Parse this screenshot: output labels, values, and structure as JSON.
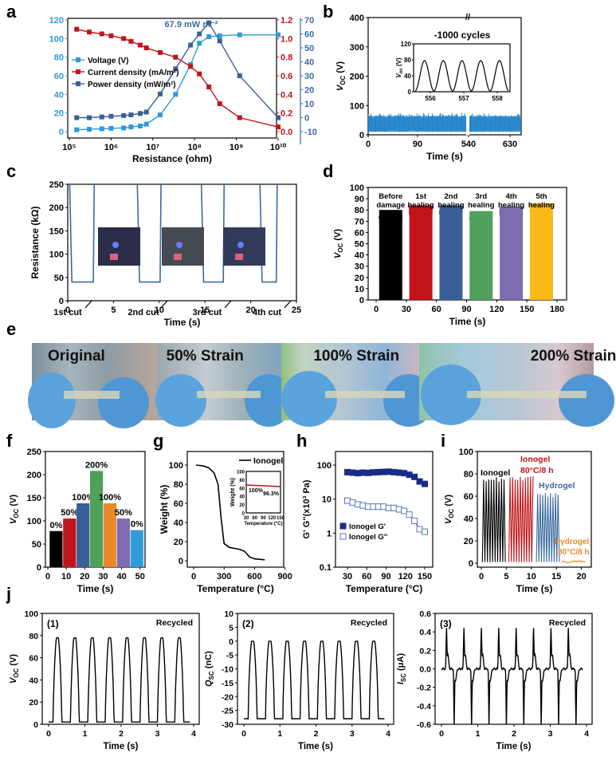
{
  "panels": {
    "a": "a",
    "b": "b",
    "c": "c",
    "d": "d",
    "e": "e",
    "f": "f",
    "g": "g",
    "h": "h",
    "i": "i",
    "j": "j"
  },
  "colors": {
    "blue": "#2f6fb5",
    "light_blue": "#2f9bd8",
    "red": "#c0141b",
    "navy": "#3a5f96",
    "black": "#000000",
    "green": "#4fa05a",
    "purple": "#7e6bb0",
    "yellow": "#f8b919",
    "orange": "#e88a2a",
    "steel": "#3b6aa0"
  },
  "chart_data": [
    {
      "id": "a",
      "type": "line",
      "annotation": "67.9 mW m⁻²",
      "xlabel": "Resistance (ohm)",
      "x_log": true,
      "x_ticks": [
        "10⁵",
        "10⁶",
        "10⁷",
        "10⁸",
        "10⁹",
        "10¹⁰"
      ],
      "y_left_ticks": [
        "0",
        "20",
        "40",
        "60",
        "80",
        "100",
        "120"
      ],
      "y_mid_ticks": [
        "0.0",
        "0.2",
        "0.4",
        "0.6",
        "0.8",
        "1.0",
        "1.2"
      ],
      "y_right_ticks": [
        "-10",
        "0",
        "10",
        "20",
        "30",
        "40",
        "50",
        "60",
        "70"
      ],
      "x": [
        150000,
        300000,
        600000,
        1000000,
        2000000,
        3000000,
        5000000,
        7000000,
        15000000,
        35000000,
        80000000,
        130000000,
        220000000,
        400000000,
        1200000000,
        10000000000
      ],
      "series": [
        {
          "name": "Voltage (V)",
          "axis": "left",
          "values": [
            2,
            2.5,
            3,
            3.5,
            4,
            5,
            6,
            8,
            18,
            40,
            72,
            95,
            102,
            103,
            104,
            104
          ]
        },
        {
          "name": "Current density (mA/m²)",
          "axis": "mid",
          "values": [
            1.1,
            1.07,
            1.05,
            1.03,
            1.0,
            0.97,
            0.93,
            0.9,
            0.85,
            0.8,
            0.7,
            0.62,
            0.48,
            0.3,
            0.15,
            0.05
          ]
        },
        {
          "name": "Power density (mW/m²)",
          "axis": "right",
          "values": [
            0,
            0,
            0.5,
            1,
            1.5,
            2,
            3,
            4,
            17,
            35,
            52,
            60,
            67.9,
            55,
            30,
            0
          ]
        }
      ]
    },
    {
      "id": "b",
      "type": "line",
      "ylabel": "V",
      "ylabel_sub": "OC",
      "ylabel_unit": " (V)",
      "xlabel": "Time (s)",
      "x_ticks": [
        "0",
        "90",
        "540",
        "630"
      ],
      "y_ticks": [
        "0",
        "100",
        "200",
        "300",
        "400"
      ],
      "inset": {
        "title": "-1000 cycles",
        "x_ticks": [
          "556",
          "557",
          "558"
        ],
        "y_ticks": [
          "0",
          "40",
          "80",
          "120"
        ],
        "ylabel": "V",
        "ylabel_sub": "oc",
        "ylabel_unit": " (V)"
      },
      "signal_range": [
        10,
        75
      ]
    },
    {
      "id": "c",
      "type": "line",
      "ylabel": "Resistance (kΩ)",
      "xlabel": "Time (s)",
      "x_ticks": [
        "0",
        "5",
        "10",
        "15",
        "20",
        "25"
      ],
      "y_ticks": [
        "0",
        "50",
        "100",
        "150",
        "200",
        "250"
      ],
      "cut_labels": [
        "1st cut",
        "2nd cut",
        "3rd cut",
        "4th cut"
      ],
      "baseline": 40
    },
    {
      "id": "d",
      "type": "bar",
      "ylabel": "V",
      "ylabel_sub": "OC",
      "ylabel_unit": " (V)",
      "xlabel": "Time (s)",
      "x_ticks": [
        "0",
        "30",
        "60",
        "90",
        "120",
        "150",
        "180"
      ],
      "y_ticks": [
        "0",
        "10",
        "20",
        "30",
        "40",
        "50",
        "60",
        "70",
        "80",
        "90",
        "100"
      ],
      "categories": [
        "Before damage",
        "1st healing",
        "2nd healing",
        "3rd healing",
        "4th healing",
        "5th healing"
      ],
      "values": [
        80,
        84,
        84,
        79,
        83,
        86
      ]
    },
    {
      "id": "f",
      "type": "bar",
      "ylabel": "V",
      "ylabel_sub": "OC",
      "ylabel_unit": " (V)",
      "xlabel": "Time (s)",
      "x_ticks": [
        "0",
        "10",
        "20",
        "30",
        "40",
        "50"
      ],
      "y_ticks": [
        "0",
        "50",
        "100",
        "150",
        "200",
        "250"
      ],
      "categories": [
        "0%",
        "50%",
        "100%",
        "200%",
        "100%",
        "50%",
        "0%"
      ],
      "values": [
        78,
        105,
        138,
        208,
        138,
        105,
        80
      ]
    },
    {
      "id": "g",
      "type": "line",
      "ylabel": "Weight (%)",
      "xlabel": "Temperature (°C)",
      "legend": "Ionogel",
      "x_ticks": [
        "0",
        "300",
        "600",
        "900"
      ],
      "y_ticks": [
        "0",
        "20",
        "40",
        "60",
        "80",
        "100"
      ],
      "x": [
        25,
        100,
        150,
        200,
        240,
        270,
        300,
        350,
        400,
        450,
        500,
        550,
        600,
        700
      ],
      "values": [
        100,
        99,
        97,
        92,
        80,
        45,
        18,
        14,
        13,
        12,
        10,
        4,
        2,
        1
      ],
      "inset": {
        "ylabel": "Weight (%)",
        "xlabel": "Temperature (°C)",
        "x_ticks": [
          "30",
          "60",
          "90",
          "120",
          "150"
        ],
        "y_ticks": [
          "0",
          "20",
          "40",
          "60",
          "80",
          "100"
        ],
        "label_start": "100%",
        "label_end": "96.3%"
      }
    },
    {
      "id": "h",
      "type": "scatter",
      "ylabel": "G' G''(x10³ Pa)",
      "xlabel": "Temperature (°C)",
      "y_log": true,
      "x_ticks": [
        "30",
        "60",
        "90",
        "120",
        "150"
      ],
      "y_ticks": [
        "0.1",
        "1",
        "10",
        "100"
      ],
      "x": [
        30,
        38,
        46,
        54,
        62,
        70,
        78,
        86,
        94,
        102,
        110,
        118,
        126,
        134,
        142,
        150
      ],
      "series": [
        {
          "name": "Ionogel G'",
          "values": [
            62,
            60,
            58,
            60,
            59,
            61,
            62,
            63,
            64,
            62,
            60,
            58,
            52,
            45,
            33,
            28
          ]
        },
        {
          "name": "Ionogel G''",
          "values": [
            9,
            8,
            7,
            6.5,
            6,
            6,
            6,
            6,
            5.5,
            5.5,
            5,
            4.5,
            3.5,
            2.3,
            1.3,
            1.1
          ]
        }
      ]
    },
    {
      "id": "i",
      "type": "bar",
      "ylabel": "V",
      "ylabel_sub": "OC",
      "ylabel_unit": " (V)",
      "xlabel": "Time (s)",
      "x_ticks": [
        "0",
        "5",
        "10",
        "15",
        "20"
      ],
      "y_ticks": [
        "0",
        "20",
        "40",
        "60",
        "80",
        "100"
      ],
      "categories": [
        "Ionogel",
        "Ionogel 80°C/8 h",
        "Hydrogel",
        "Hydrogel 80°C/8 h"
      ],
      "values": [
        77,
        78,
        63,
        3
      ]
    },
    {
      "id": "j1",
      "type": "line",
      "tag": "(1)",
      "note": "Recycled",
      "ylabel": "V",
      "ylabel_sub": "OC",
      "ylabel_unit": " (V)",
      "xlabel": "Time (s)",
      "x_ticks": [
        "0",
        "1",
        "2",
        "3",
        "4"
      ],
      "y_ticks": [
        "0",
        "20",
        "40",
        "60",
        "80",
        "100"
      ],
      "peak": 78,
      "base": 2
    },
    {
      "id": "j2",
      "type": "line",
      "tag": "(2)",
      "note": "Recycled",
      "ylabel": "Q",
      "ylabel_sub": "SC",
      "ylabel_unit": " (nC)",
      "xlabel": "Time (s)",
      "x_ticks": [
        "0",
        "1",
        "2",
        "3",
        "4"
      ],
      "y_ticks": [
        "-30",
        "-25",
        "-20",
        "-15",
        "-10",
        "-5",
        "0",
        "5",
        "10"
      ],
      "peak": 0,
      "base": -28
    },
    {
      "id": "j3",
      "type": "line",
      "tag": "(3)",
      "note": "Recycled",
      "ylabel": "I",
      "ylabel_sub": "SC",
      "ylabel_unit": " (μA)",
      "xlabel": "Time (s)",
      "x_ticks": [
        "0",
        "1",
        "2",
        "3",
        "4"
      ],
      "y_ticks": [
        "-0.6",
        "-0.4",
        "-0.2",
        "0.0",
        "0.2",
        "0.4",
        "0.6"
      ],
      "peak": 0.42,
      "base": -0.62
    }
  ],
  "photo_e": {
    "labels": [
      "Original",
      "50% Strain",
      "100% Strain",
      "200% Strain"
    ]
  }
}
